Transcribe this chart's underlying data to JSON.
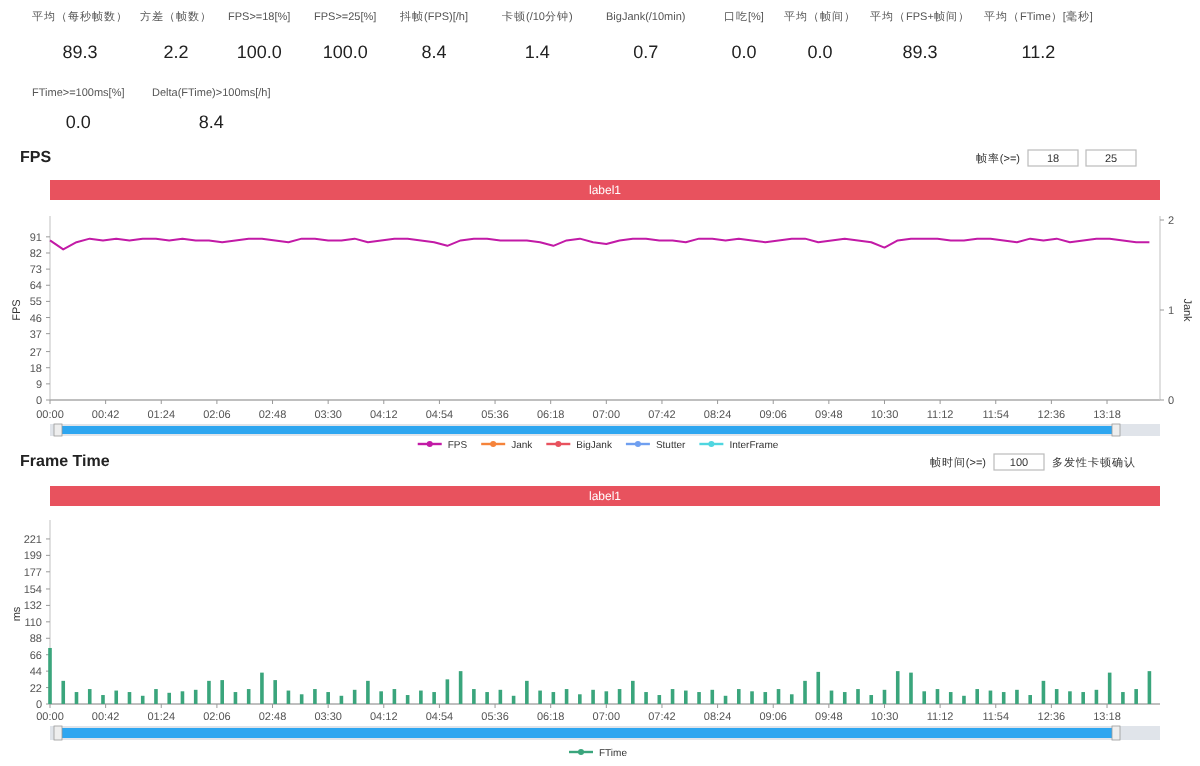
{
  "chart_data": [
    {
      "type": "other",
      "annotations": [
        "平均（每秒帧数）",
        "89.3",
        "方差（帧数）",
        "2.2",
        "FPS>=18[%]",
        "100.0",
        "FPS>=25[%]",
        "100.0",
        "抖帧(FPS)[/h]",
        "8.4",
        "卡顿(/10分钟)",
        "1.4",
        "BigJank(/10min)",
        "0.7",
        "口吃[%]",
        "0.0",
        "平均（帧间）",
        "0.0",
        "平均（FPS+帧间）",
        "89.3",
        "平均（FTime）[毫秒]",
        "11.2",
        "FTime>=100ms[%]",
        "0.0",
        "Delta(FTime)>100ms[/h]",
        "8.4"
      ]
    },
    {
      "type": "line",
      "title": "FPS",
      "ylabel": "FPS",
      "y2label": "Jank",
      "annotations": [
        "label1",
        "帧率(>=)",
        "18",
        "25"
      ],
      "xlim": [
        0,
        838
      ],
      "ylim": [
        0,
        100.4
      ],
      "y2lim": [
        0,
        2
      ],
      "y2ticks": [
        0,
        1,
        2
      ],
      "xticks": [
        {
          "value": 0,
          "label": "00:00"
        },
        {
          "value": 42,
          "label": "00:42"
        },
        {
          "value": 84,
          "label": "01:24"
        },
        {
          "value": 126,
          "label": "02:06"
        },
        {
          "value": 168,
          "label": "02:48"
        },
        {
          "value": 210,
          "label": "03:30"
        },
        {
          "value": 252,
          "label": "04:12"
        },
        {
          "value": 294,
          "label": "04:54"
        },
        {
          "value": 336,
          "label": "05:36"
        },
        {
          "value": 378,
          "label": "06:18"
        },
        {
          "value": 420,
          "label": "07:00"
        },
        {
          "value": 462,
          "label": "07:42"
        },
        {
          "value": 504,
          "label": "08:24"
        },
        {
          "value": 546,
          "label": "09:06"
        },
        {
          "value": 588,
          "label": "09:48"
        },
        {
          "value": 630,
          "label": "10:30"
        },
        {
          "value": 672,
          "label": "11:12"
        },
        {
          "value": 714,
          "label": "11:54"
        },
        {
          "value": 756,
          "label": "12:36"
        },
        {
          "value": 798,
          "label": "13:18"
        }
      ],
      "yticks": [
        0,
        9,
        18,
        27,
        37,
        46,
        55,
        64,
        73,
        82,
        91
      ],
      "legend": "bottom",
      "line_style": "solid",
      "series": [
        {
          "name": "FPS",
          "color": "#c21aa6",
          "x": [
            0,
            10,
            20,
            30,
            40,
            50,
            60,
            70,
            80,
            90,
            100,
            110,
            120,
            130,
            140,
            150,
            160,
            170,
            180,
            190,
            200,
            210,
            220,
            230,
            240,
            250,
            260,
            270,
            280,
            290,
            300,
            310,
            320,
            330,
            340,
            350,
            360,
            370,
            380,
            390,
            400,
            410,
            420,
            430,
            440,
            450,
            460,
            470,
            480,
            490,
            500,
            510,
            520,
            530,
            540,
            550,
            560,
            570,
            580,
            590,
            600,
            610,
            620,
            630,
            640,
            650,
            660,
            670,
            680,
            690,
            700,
            710,
            720,
            730,
            740,
            750,
            760,
            770,
            780,
            790,
            800,
            810,
            820,
            830
          ],
          "values": [
            89,
            84,
            88,
            90,
            89,
            90,
            89,
            90,
            90,
            89,
            90,
            89,
            89,
            88,
            89,
            90,
            90,
            89,
            88,
            90,
            90,
            89,
            89,
            90,
            88,
            89,
            90,
            90,
            89,
            88,
            86,
            89,
            90,
            90,
            89,
            89,
            89,
            88,
            86,
            89,
            90,
            88,
            87,
            89,
            90,
            90,
            89,
            89,
            88,
            90,
            90,
            89,
            90,
            89,
            88,
            89,
            90,
            90,
            88,
            89,
            90,
            89,
            88,
            85,
            89,
            90,
            90,
            90,
            89,
            89,
            90,
            90,
            89,
            88,
            90,
            89,
            90,
            88,
            89,
            90,
            90,
            89,
            88,
            88
          ]
        },
        {
          "name": "Jank",
          "color": "#f5833a"
        },
        {
          "name": "BigJank",
          "color": "#e8525e"
        },
        {
          "name": "Stutter",
          "color": "#6f9ff0"
        },
        {
          "name": "InterFrame",
          "color": "#4fd6e0"
        }
      ]
    },
    {
      "type": "bar",
      "title": "Frame Time",
      "ylabel": "ms",
      "annotations": [
        "label1",
        "帧时间(>=)",
        "100",
        "多发性卡顿确认"
      ],
      "xlim": [
        0,
        838
      ],
      "ylim": [
        0,
        241
      ],
      "xticks": [
        {
          "value": 0,
          "label": "00:00"
        },
        {
          "value": 42,
          "label": "00:42"
        },
        {
          "value": 84,
          "label": "01:24"
        },
        {
          "value": 126,
          "label": "02:06"
        },
        {
          "value": 168,
          "label": "02:48"
        },
        {
          "value": 210,
          "label": "03:30"
        },
        {
          "value": 252,
          "label": "04:12"
        },
        {
          "value": 294,
          "label": "04:54"
        },
        {
          "value": 336,
          "label": "05:36"
        },
        {
          "value": 378,
          "label": "06:18"
        },
        {
          "value": 420,
          "label": "07:00"
        },
        {
          "value": 462,
          "label": "07:42"
        },
        {
          "value": 504,
          "label": "08:24"
        },
        {
          "value": 546,
          "label": "09:06"
        },
        {
          "value": 588,
          "label": "09:48"
        },
        {
          "value": 630,
          "label": "10:30"
        },
        {
          "value": 672,
          "label": "11:12"
        },
        {
          "value": 714,
          "label": "11:54"
        },
        {
          "value": 756,
          "label": "12:36"
        },
        {
          "value": 798,
          "label": "13:18"
        }
      ],
      "yticks": [
        0,
        22,
        44,
        66,
        88,
        110,
        132,
        154,
        177,
        199,
        221
      ],
      "legend": "bottom",
      "series": [
        {
          "name": "FTime",
          "color": "#3aa57c",
          "x": [
            0,
            10,
            20,
            30,
            40,
            50,
            60,
            70,
            80,
            90,
            100,
            110,
            120,
            130,
            140,
            150,
            160,
            170,
            180,
            190,
            200,
            210,
            220,
            230,
            240,
            250,
            260,
            270,
            280,
            290,
            300,
            310,
            320,
            330,
            340,
            350,
            360,
            370,
            380,
            390,
            400,
            410,
            420,
            430,
            440,
            450,
            460,
            470,
            480,
            490,
            500,
            510,
            520,
            530,
            540,
            550,
            560,
            570,
            580,
            590,
            600,
            610,
            620,
            630,
            640,
            650,
            660,
            670,
            680,
            690,
            700,
            710,
            720,
            730,
            740,
            750,
            760,
            770,
            780,
            790,
            800,
            810,
            820,
            830
          ],
          "values": [
            75,
            31,
            16,
            20,
            12,
            18,
            16,
            11,
            20,
            15,
            17,
            19,
            31,
            32,
            16,
            20,
            42,
            32,
            18,
            13,
            20,
            16,
            11,
            19,
            31,
            17,
            20,
            12,
            18,
            16,
            33,
            44,
            20,
            16,
            19,
            11,
            31,
            18,
            16,
            20,
            13,
            19,
            17,
            20,
            31,
            16,
            12,
            20,
            18,
            16,
            19,
            11,
            20,
            17,
            16,
            20,
            13,
            31,
            43,
            18,
            16,
            20,
            12,
            19,
            44,
            42,
            17,
            20,
            16,
            11,
            20,
            18,
            16,
            19,
            12,
            31,
            20,
            17,
            16,
            19,
            42,
            16,
            20,
            44
          ]
        }
      ]
    }
  ]
}
